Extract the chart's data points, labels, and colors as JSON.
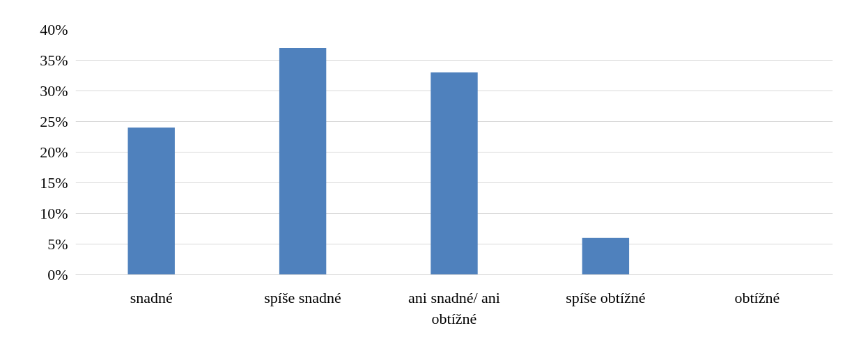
{
  "chart_data": {
    "type": "bar",
    "categories": [
      "snadné",
      "spíše snadné",
      "ani snadné/ ani obtížné",
      "spíše obtížné",
      "obtížné"
    ],
    "values": [
      24,
      37,
      33,
      6,
      0
    ],
    "color": "#4f81bd",
    "ylim": [
      0,
      40
    ],
    "yticks": [
      {
        "value": 0,
        "label": "0%"
      },
      {
        "value": 5,
        "label": "5%"
      },
      {
        "value": 10,
        "label": "10%"
      },
      {
        "value": 15,
        "label": "15%"
      },
      {
        "value": 20,
        "label": "20%"
      },
      {
        "value": 25,
        "label": "25%"
      },
      {
        "value": 30,
        "label": "30%"
      },
      {
        "value": 35,
        "label": "35%"
      },
      {
        "value": 40,
        "label": "40%"
      }
    ],
    "grid": "y"
  }
}
